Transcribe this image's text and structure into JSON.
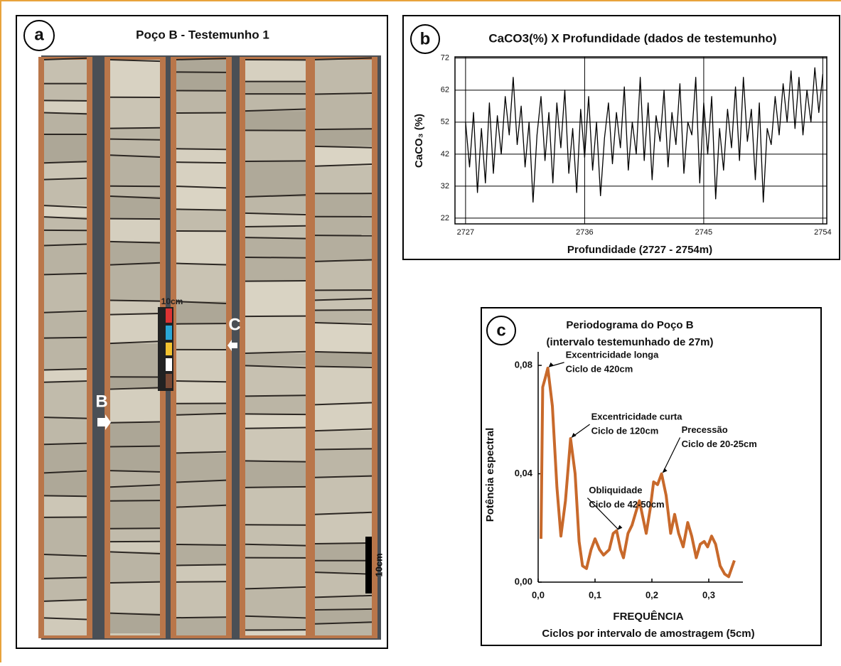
{
  "photo_panel": {
    "label": "a",
    "title": "Poço B - Testemunho 1",
    "markers": [
      "B",
      "C"
    ],
    "ruler_label": "10cm",
    "scale_label": "10cm"
  },
  "chart_data": [
    {
      "type": "line",
      "label": "b",
      "title": "CaCO3(%) X Profundidade (dados de testemunho)",
      "y_label": "CaCO₃ (%)",
      "x_label": "Profundidade (2727 - 2754m)",
      "xlim": [
        2726.2,
        2754.3
      ],
      "xticks": [
        2727,
        2736,
        2745,
        2754
      ],
      "ylim": [
        20.2,
        72.4
      ],
      "yticks": [
        22,
        32,
        42,
        52,
        62,
        72
      ],
      "grid": true,
      "color": "#000000",
      "x": [
        2727.0,
        2727.3,
        2727.6,
        2727.9,
        2728.2,
        2728.5,
        2728.8,
        2729.1,
        2729.4,
        2729.7,
        2730.0,
        2730.3,
        2730.6,
        2730.9,
        2731.2,
        2731.5,
        2731.8,
        2732.1,
        2732.4,
        2732.7,
        2733.0,
        2733.3,
        2733.6,
        2733.9,
        2734.2,
        2734.5,
        2734.8,
        2735.1,
        2735.4,
        2735.7,
        2736.0,
        2736.3,
        2736.6,
        2736.9,
        2737.2,
        2737.5,
        2737.8,
        2738.1,
        2738.4,
        2738.7,
        2739.0,
        2739.3,
        2739.6,
        2739.9,
        2740.2,
        2740.5,
        2740.8,
        2741.1,
        2741.4,
        2741.7,
        2742.0,
        2742.3,
        2742.6,
        2742.9,
        2743.2,
        2743.5,
        2743.8,
        2744.1,
        2744.4,
        2744.7,
        2745.0,
        2745.3,
        2745.6,
        2745.9,
        2746.2,
        2746.5,
        2746.8,
        2747.1,
        2747.4,
        2747.7,
        2748.0,
        2748.3,
        2748.6,
        2748.9,
        2749.2,
        2749.5,
        2749.8,
        2750.1,
        2750.4,
        2750.7,
        2751.0,
        2751.3,
        2751.6,
        2751.9,
        2752.2,
        2752.5,
        2752.8,
        2753.1,
        2753.4,
        2753.7,
        2754.0
      ],
      "values": [
        52,
        38,
        55,
        30,
        50,
        33,
        58,
        36,
        54,
        42,
        60,
        48,
        66,
        45,
        57,
        38,
        52,
        27,
        48,
        60,
        40,
        55,
        33,
        58,
        44,
        62,
        36,
        50,
        30,
        56,
        41,
        60,
        37,
        52,
        29,
        47,
        58,
        39,
        55,
        44,
        63,
        37,
        52,
        42,
        66,
        40,
        58,
        34,
        54,
        46,
        62,
        38,
        55,
        45,
        64,
        36,
        52,
        48,
        66,
        33,
        58,
        42,
        60,
        28,
        50,
        37,
        56,
        44,
        63,
        40,
        66,
        46,
        56,
        34,
        58,
        27,
        50,
        45,
        60,
        48,
        64,
        52,
        68,
        50,
        66,
        48,
        62,
        52,
        69,
        55,
        67
      ]
    },
    {
      "type": "line",
      "label": "c",
      "title": "Periodograma do Poço B",
      "subtitle": "(intervalo testemunhado de 27m)",
      "y_label": "Potência espectral",
      "x_label": "FREQUÊNCIA",
      "x_sublabel": "Ciclos por intervalo de amostragem (5cm)",
      "xlim": [
        0,
        0.36
      ],
      "xticks": [
        {
          "value": 0,
          "label": "0,0"
        },
        {
          "value": 0.1,
          "label": "0,1"
        },
        {
          "value": 0.2,
          "label": "0,2"
        },
        {
          "value": 0.3,
          "label": "0,3"
        }
      ],
      "ylim": [
        0,
        0.085
      ],
      "yticks": [
        {
          "value": 0,
          "label": "0,00"
        },
        {
          "value": 0.04,
          "label": "0,04"
        },
        {
          "value": 0.08,
          "label": "0,08"
        }
      ],
      "grid": false,
      "color": "#c8692b",
      "x": [
        0.005,
        0.008,
        0.012,
        0.017,
        0.025,
        0.033,
        0.04,
        0.048,
        0.057,
        0.065,
        0.072,
        0.078,
        0.085,
        0.093,
        0.1,
        0.108,
        0.115,
        0.125,
        0.132,
        0.138,
        0.145,
        0.15,
        0.158,
        0.165,
        0.172,
        0.178,
        0.185,
        0.19,
        0.197,
        0.203,
        0.21,
        0.217,
        0.225,
        0.233,
        0.24,
        0.247,
        0.255,
        0.263,
        0.27,
        0.278,
        0.285,
        0.292,
        0.298,
        0.305,
        0.312,
        0.32,
        0.328,
        0.335,
        0.34,
        0.345
      ],
      "values": [
        0.016,
        0.072,
        0.075,
        0.079,
        0.065,
        0.035,
        0.017,
        0.03,
        0.053,
        0.04,
        0.015,
        0.006,
        0.005,
        0.012,
        0.016,
        0.012,
        0.01,
        0.012,
        0.018,
        0.019,
        0.012,
        0.009,
        0.018,
        0.021,
        0.026,
        0.03,
        0.023,
        0.018,
        0.027,
        0.037,
        0.036,
        0.04,
        0.032,
        0.018,
        0.025,
        0.018,
        0.013,
        0.022,
        0.017,
        0.009,
        0.014,
        0.015,
        0.013,
        0.017,
        0.014,
        0.006,
        0.003,
        0.002,
        0.005,
        0.008
      ],
      "annotations": [
        {
          "label": "Excentricidade longa",
          "detail": "Ciclo de 420cm",
          "x": 0.017,
          "y": 0.079
        },
        {
          "label": "Excentricidade curta",
          "detail": "Ciclo de 120cm",
          "x": 0.057,
          "y": 0.053
        },
        {
          "label": "Precessão",
          "detail": "Ciclo de 20-25cm",
          "x": 0.217,
          "y": 0.04
        },
        {
          "label": "Obliquidade",
          "detail": "Ciclo de 42-50cm",
          "x": 0.138,
          "y": 0.019
        }
      ]
    }
  ]
}
